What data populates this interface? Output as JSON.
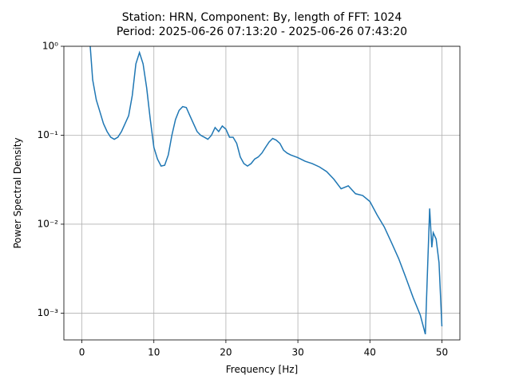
{
  "chart_data": {
    "type": "line",
    "title": "Station: HRN, Component: By, length of FFT: 1024",
    "subtitle": "Period: 2025-06-26 07:13:20 - 2025-06-26 07:43:20",
    "x_label": "Frequency [Hz]",
    "y_label": "Power Spectral Density",
    "y_scale": "log",
    "grid": true,
    "xlim": [
      -2.5,
      52.5
    ],
    "xticks": [
      0,
      10,
      20,
      30,
      40,
      50
    ],
    "ylim": [
      0.0005,
      1
    ],
    "yticks": [
      {
        "value": 1,
        "label": "10⁰"
      },
      {
        "value": 0.1,
        "label": "10⁻¹"
      },
      {
        "value": 0.01,
        "label": "10⁻²"
      },
      {
        "value": 0.001,
        "label": "10⁻³"
      }
    ],
    "series": [
      {
        "color": "#1f77b4",
        "x": [
          1.0,
          1.5,
          2.0,
          2.5,
          3.0,
          3.5,
          4.0,
          4.5,
          5.0,
          5.5,
          6.0,
          6.5,
          7.0,
          7.5,
          8.0,
          8.5,
          9.0,
          9.5,
          10.0,
          10.5,
          11.0,
          11.5,
          12.0,
          12.5,
          13.0,
          13.5,
          14.0,
          14.5,
          15.0,
          15.5,
          16.0,
          16.5,
          17.0,
          17.5,
          18.0,
          18.5,
          19.0,
          19.5,
          20.0,
          20.5,
          21.0,
          21.5,
          22.0,
          22.5,
          23.0,
          23.5,
          24.0,
          24.5,
          25.0,
          25.5,
          26.0,
          26.5,
          27.0,
          27.5,
          28.0,
          28.5,
          29.0,
          30.0,
          31.0,
          32.0,
          33.0,
          34.0,
          35.0,
          36.0,
          37.0,
          38.0,
          39.0,
          40.0,
          41.0,
          42.0,
          43.0,
          44.0,
          45.0,
          46.0,
          47.0,
          47.7,
          48.0,
          48.3,
          48.6,
          48.8,
          49.2,
          49.6,
          50.0
        ],
        "values": [
          1.5,
          0.42,
          0.25,
          0.184,
          0.135,
          0.11,
          0.095,
          0.09,
          0.095,
          0.11,
          0.135,
          0.166,
          0.28,
          0.635,
          0.85,
          0.635,
          0.34,
          0.15,
          0.073,
          0.054,
          0.045,
          0.046,
          0.06,
          0.1,
          0.15,
          0.19,
          0.21,
          0.205,
          0.166,
          0.135,
          0.11,
          0.1,
          0.095,
          0.09,
          0.1,
          0.122,
          0.11,
          0.127,
          0.117,
          0.095,
          0.095,
          0.081,
          0.057,
          0.048,
          0.045,
          0.048,
          0.054,
          0.057,
          0.063,
          0.073,
          0.084,
          0.092,
          0.088,
          0.081,
          0.068,
          0.063,
          0.06,
          0.056,
          0.051,
          0.048,
          0.044,
          0.039,
          0.032,
          0.025,
          0.027,
          0.022,
          0.021,
          0.018,
          0.0127,
          0.0093,
          0.0062,
          0.0041,
          0.0025,
          0.0015,
          0.00095,
          0.00058,
          0.003,
          0.015,
          0.0055,
          0.008,
          0.0068,
          0.0037,
          0.00071
        ]
      }
    ]
  }
}
